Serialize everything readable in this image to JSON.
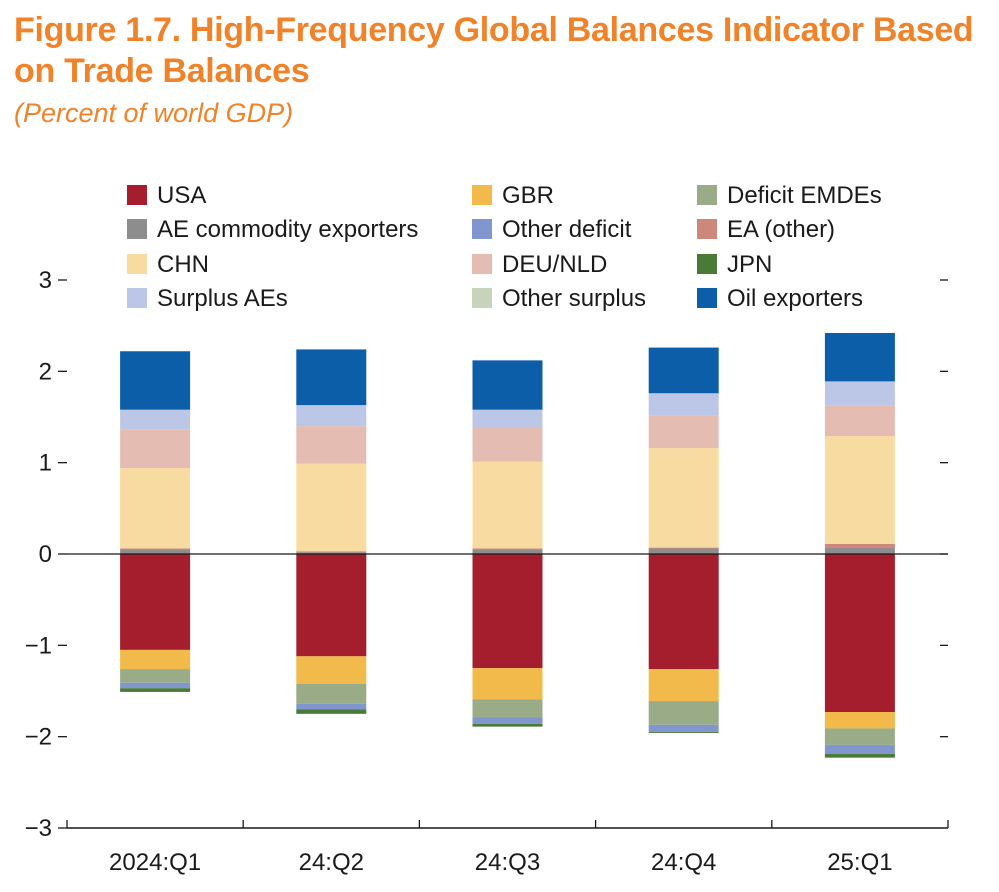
{
  "chart_data": {
    "type": "bar",
    "stacked": true,
    "title": "Figure 1.7. High-Frequency Global Balances Indicator Based on Trade Balances",
    "subtitle": "(Percent of world GDP)",
    "xlabel": "",
    "ylabel": "",
    "ylim": [
      -3,
      3
    ],
    "yticks": [
      3,
      2,
      1,
      0,
      -1,
      -2,
      -3
    ],
    "ytick_labels": [
      "3",
      "2",
      "1",
      "0",
      "−1",
      "−2",
      "−3"
    ],
    "categories": [
      "2024:Q1",
      "24:Q2",
      "24:Q3",
      "24:Q4",
      "25:Q1"
    ],
    "legend_position": "top",
    "series": [
      {
        "name": "USA",
        "color": "#a51e2e",
        "values": [
          -1.05,
          -1.12,
          -1.25,
          -1.26,
          -1.73
        ]
      },
      {
        "name": "GBR",
        "color": "#f2ba4a",
        "values": [
          -0.21,
          -0.3,
          -0.34,
          -0.35,
          -0.18
        ]
      },
      {
        "name": "Deficit EMDEs",
        "color": "#9aac87",
        "values": [
          -0.15,
          -0.22,
          -0.2,
          -0.26,
          -0.18
        ]
      },
      {
        "name": "AE commodity exporters",
        "color": "#8d8d8d",
        "values": [
          0.05,
          0.02,
          0.05,
          0.06,
          0.07
        ]
      },
      {
        "name": "Other deficit",
        "color": "#8196ce",
        "values": [
          -0.06,
          -0.06,
          -0.07,
          -0.08,
          -0.1
        ]
      },
      {
        "name": "EA (other)",
        "color": "#cd877b",
        "values": [
          0.01,
          0.01,
          0.01,
          0.01,
          0.04
        ]
      },
      {
        "name": "CHN",
        "color": "#f8dba0",
        "values": [
          0.88,
          0.96,
          0.95,
          1.09,
          1.18
        ]
      },
      {
        "name": "DEU/NLD",
        "color": "#e5bcb2",
        "values": [
          0.42,
          0.41,
          0.38,
          0.36,
          0.34
        ]
      },
      {
        "name": "JPN",
        "color": "#4a7a37",
        "values": [
          -0.04,
          -0.05,
          -0.03,
          -0.01,
          -0.04
        ]
      },
      {
        "name": "Surplus AEs",
        "color": "#bcc6e6",
        "values": [
          0.22,
          0.23,
          0.19,
          0.24,
          0.26
        ]
      },
      {
        "name": "Other surplus",
        "color": "#c7d3bb",
        "values": [
          0.0,
          0.0,
          0.0,
          0.0,
          0.0
        ]
      },
      {
        "name": "Oil exporters",
        "color": "#0d5ea8",
        "values": [
          0.64,
          0.61,
          0.54,
          0.5,
          0.53
        ]
      }
    ]
  }
}
